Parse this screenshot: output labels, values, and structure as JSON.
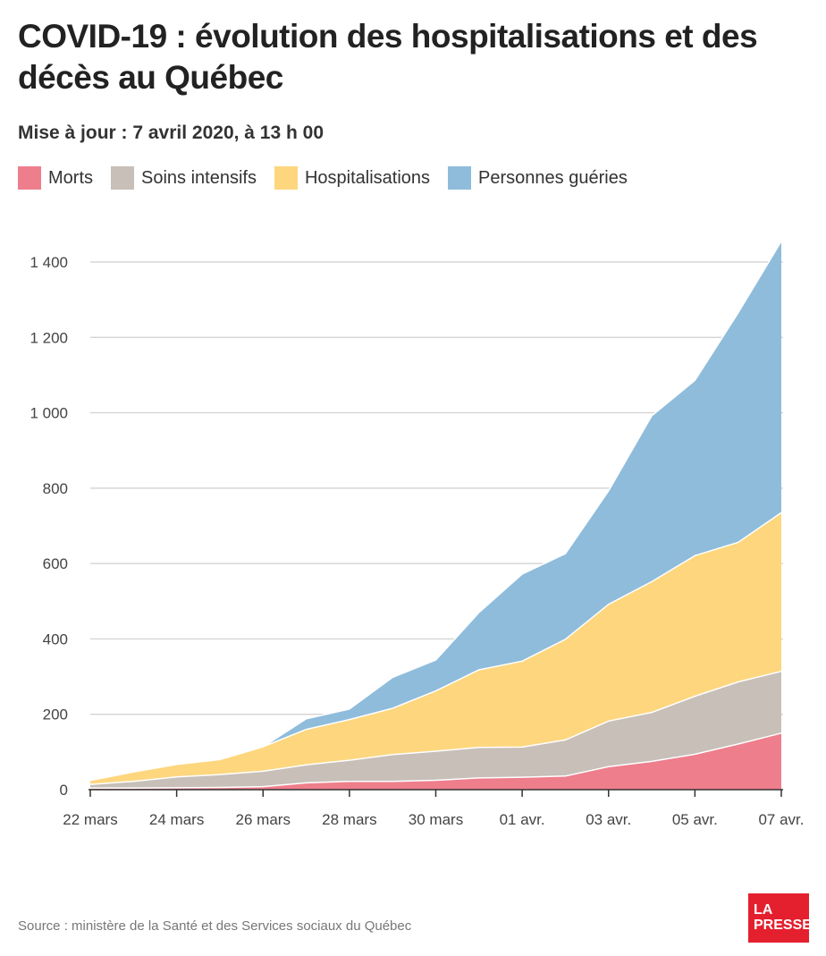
{
  "header": {
    "title": "COVID-19 : évolution des hospitalisations et des décès au Québec",
    "subtitle": "Mise à jour : 7 avril 2020, à 13 h 00"
  },
  "legend": [
    {
      "label": "Morts",
      "color": "#ee7e8c"
    },
    {
      "label": "Soins intensifs",
      "color": "#c7bfb8"
    },
    {
      "label": "Hospitalisations",
      "color": "#fdd67e"
    },
    {
      "label": "Personnes guéries",
      "color": "#8fbcdb"
    }
  ],
  "footer": {
    "source": "Source : ministère de la Santé et des Services sociaux du Québec",
    "logo_line1": "LA",
    "logo_line2": "PRESSE"
  },
  "chart_data": {
    "type": "area",
    "stacked": true,
    "x": [
      "22 mars",
      "23 mars",
      "24 mars",
      "25 mars",
      "26 mars",
      "27 mars",
      "28 mars",
      "29 mars",
      "30 mars",
      "31 mars",
      "01 avr.",
      "02 avr.",
      "03 avr.",
      "04 avr.",
      "05 avr.",
      "06 avr.",
      "07 avr."
    ],
    "x_tick_labels": [
      "22 mars",
      "24 mars",
      "26 mars",
      "28 mars",
      "30 mars",
      "01 avr.",
      "03 avr.",
      "05 avr.",
      "07 avr."
    ],
    "ylim": [
      0,
      1400
    ],
    "y_ticks": [
      0,
      200,
      400,
      600,
      800,
      1000,
      1200,
      1400
    ],
    "y_tick_labels": [
      "0",
      "200",
      "400",
      "600",
      "800",
      "1 000",
      "1 200",
      "1 400"
    ],
    "grid": true,
    "legend_position": "top-left",
    "series": [
      {
        "name": "Morts",
        "color": "#ee7e8c",
        "values": [
          4,
          4,
          5,
          6,
          8,
          18,
          22,
          22,
          25,
          31,
          33,
          36,
          61,
          75,
          94,
          121,
          150
        ]
      },
      {
        "name": "Soins intensifs",
        "color": "#c7bfb8",
        "values": [
          10,
          18,
          29,
          34,
          41,
          48,
          56,
          71,
          77,
          81,
          80,
          96,
          121,
          130,
          154,
          165,
          164
        ]
      },
      {
        "name": "Hospitalisations",
        "color": "#fdd67e",
        "values": [
          11,
          25,
          33,
          40,
          65,
          94,
          108,
          123,
          160,
          206,
          228,
          267,
          310,
          347,
          373,
          370,
          421
        ]
      },
      {
        "name": "Personnes guéries",
        "color": "#8fbcdb",
        "values": [
          0,
          0,
          0,
          0,
          0,
          28,
          28,
          82,
          82,
          152,
          231,
          227,
          301,
          440,
          465,
          609,
          720
        ]
      }
    ]
  }
}
